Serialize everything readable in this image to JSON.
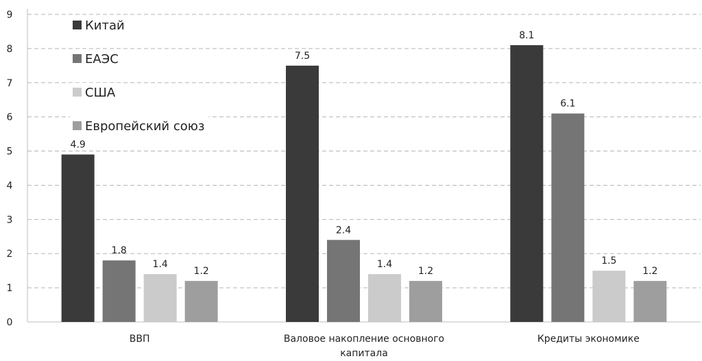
{
  "chart_data": {
    "type": "bar",
    "title": "",
    "xlabel": "",
    "ylabel": "",
    "ylim": [
      0,
      9
    ],
    "yticks": [
      0,
      1,
      2,
      3,
      4,
      5,
      6,
      7,
      8,
      9
    ],
    "grid": true,
    "legend_position": "top-left",
    "categories": [
      [
        "ВВП"
      ],
      [
        "Валовое накопление основного",
        "капитала"
      ],
      [
        "Кредиты экономике"
      ]
    ],
    "series": [
      {
        "name": "Китай",
        "color": "#3a3a3a",
        "values": [
          4.9,
          7.5,
          8.1
        ],
        "labels": [
          "4.9",
          "7.5",
          "8.1"
        ]
      },
      {
        "name": "ЕАЭС",
        "color": "#757575",
        "values": [
          1.8,
          2.4,
          6.1
        ],
        "labels": [
          "1.8",
          "2.4",
          "6.1"
        ]
      },
      {
        "name": "США",
        "color": "#cbcbcb",
        "values": [
          1.4,
          1.4,
          1.5
        ],
        "labels": [
          "1.4",
          "1.4",
          "1.5"
        ]
      },
      {
        "name": "Европейский союз",
        "color": "#9e9e9e",
        "values": [
          1.2,
          1.2,
          1.2
        ],
        "labels": [
          "1.2",
          "1.2",
          "1.2"
        ]
      }
    ]
  }
}
